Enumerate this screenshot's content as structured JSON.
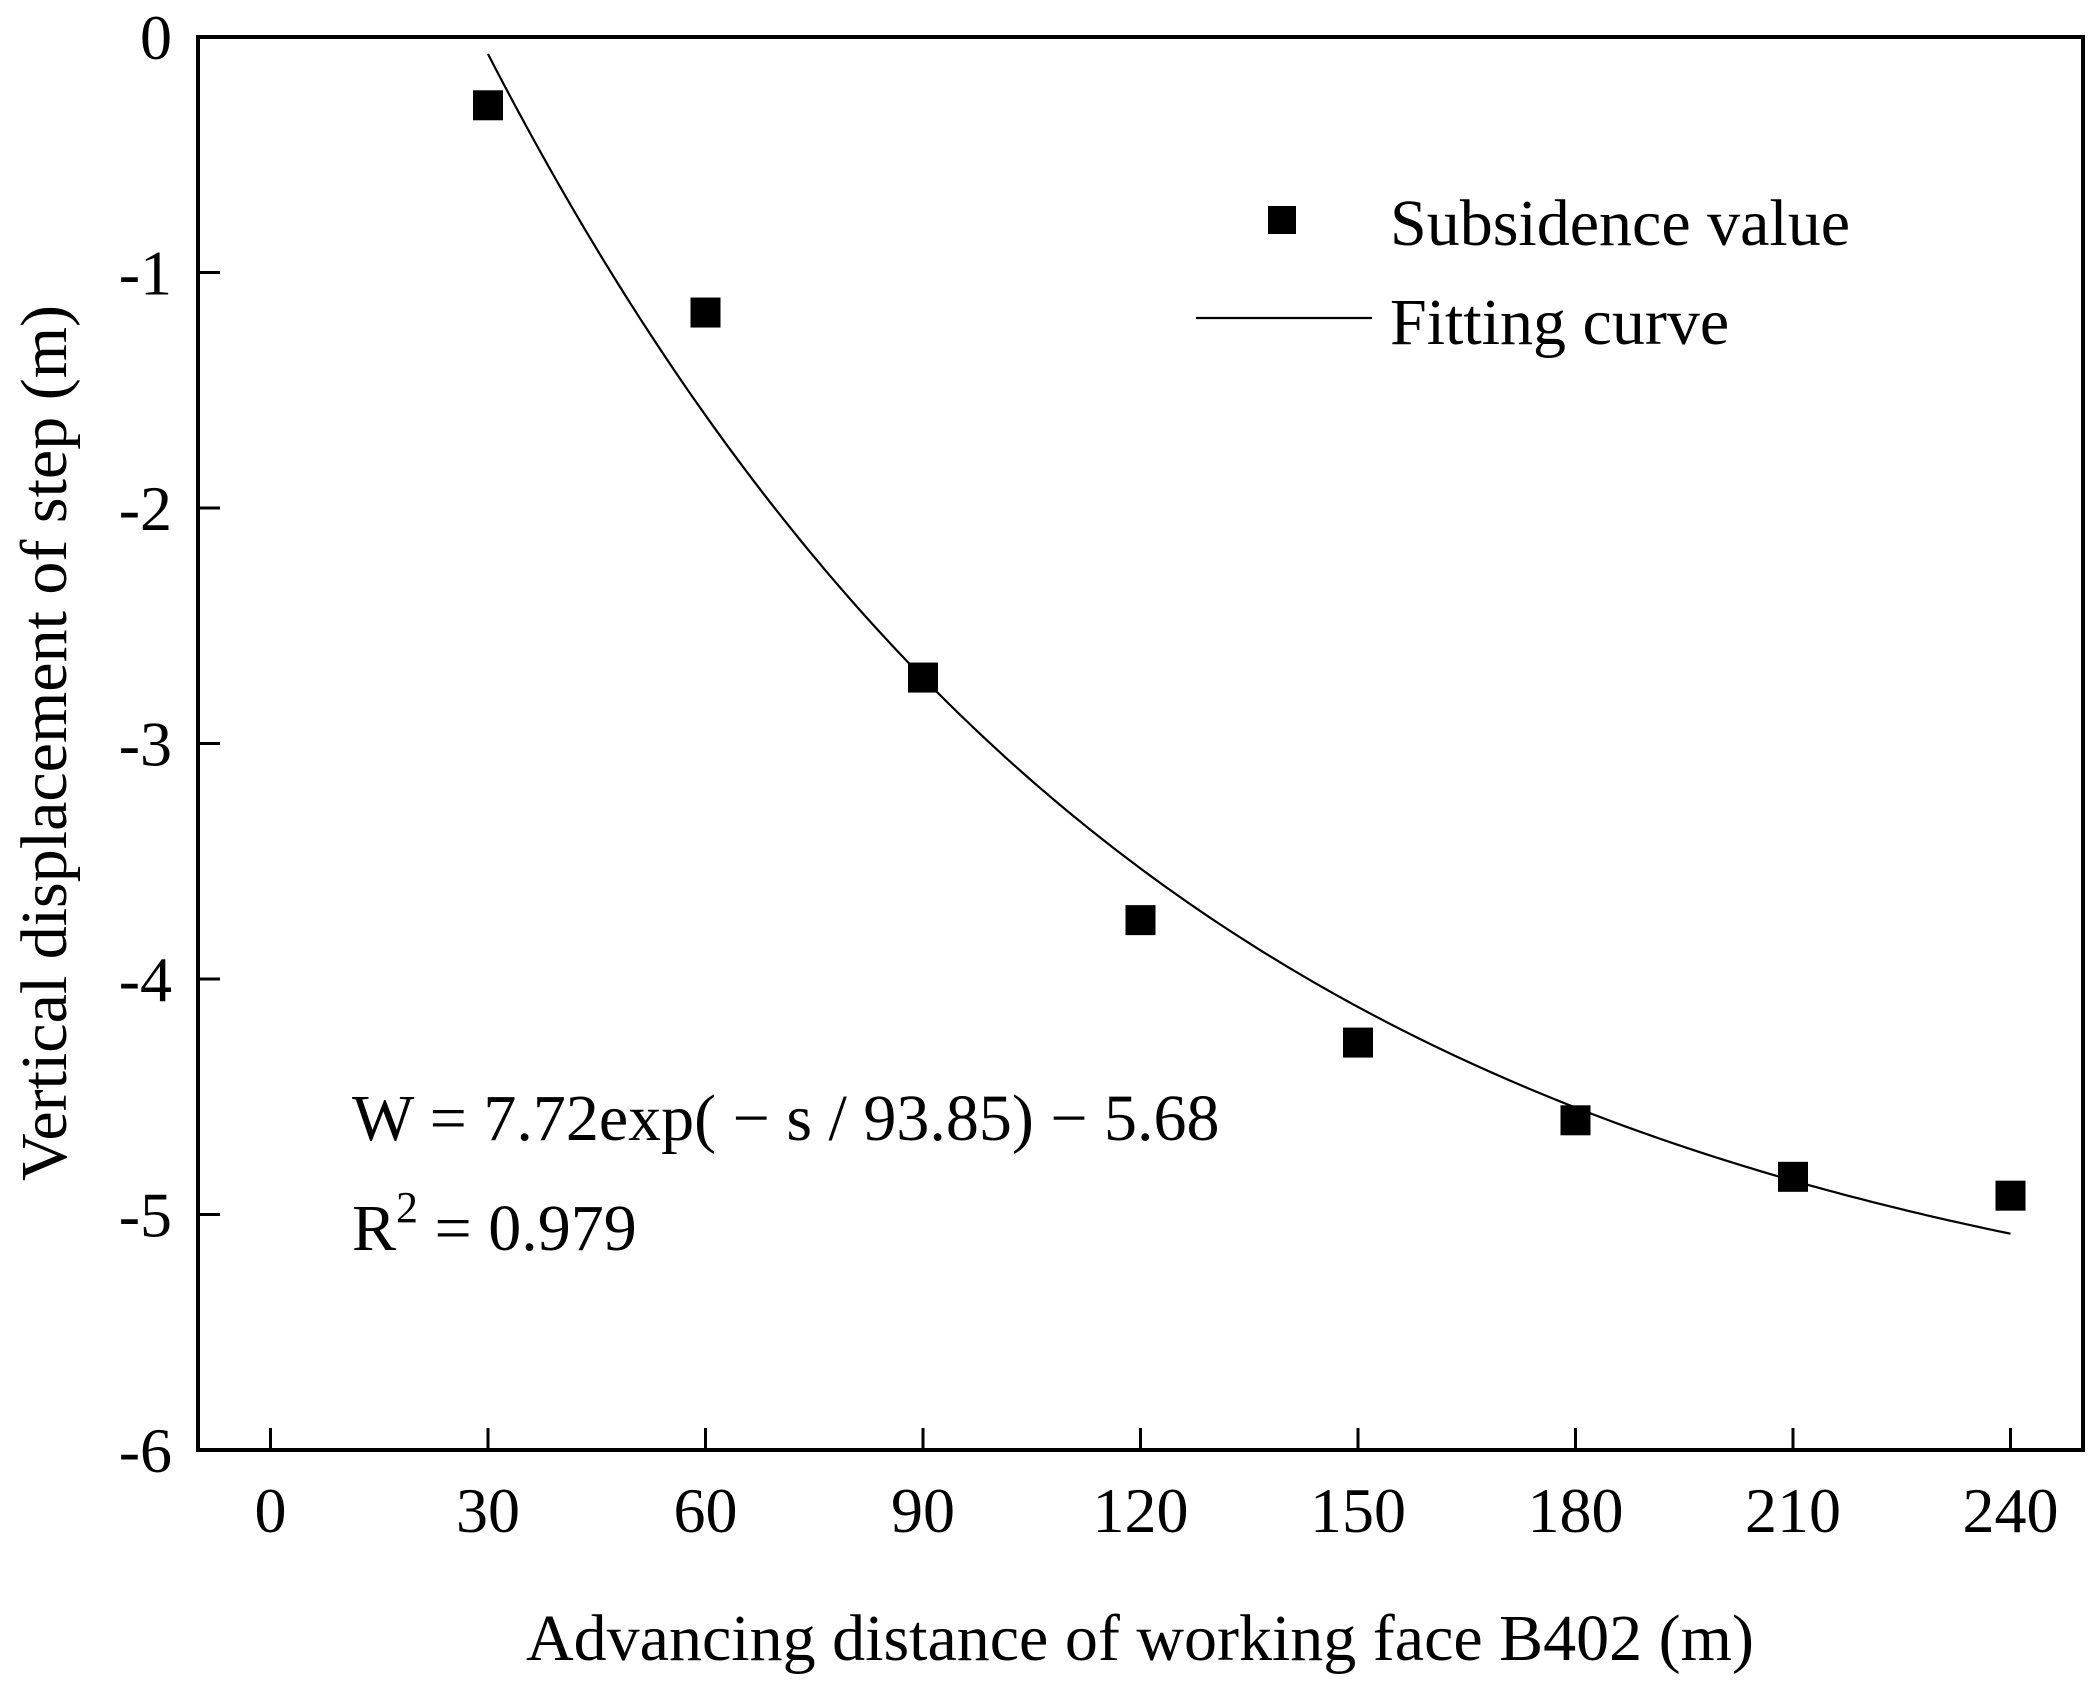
{
  "chart_data": {
    "type": "scatter",
    "title": "",
    "xlabel": "Advancing distance of working face B402 (m)",
    "ylabel": "Vertical displacement of step (m)",
    "xlim": [
      -10,
      250
    ],
    "ylim": [
      -6,
      0
    ],
    "x_ticks": [
      0,
      30,
      60,
      90,
      120,
      150,
      180,
      210,
      240
    ],
    "y_ticks": [
      0,
      -1,
      -2,
      -3,
      -4,
      -5,
      -6
    ],
    "grid": false,
    "legend_position": "top-right",
    "series": [
      {
        "name": "Subsidence value",
        "kind": "scatter",
        "marker": "square",
        "color": "#000000",
        "x": [
          30,
          60,
          90,
          120,
          150,
          180,
          210,
          240
        ],
        "y": [
          -0.29,
          -1.17,
          -2.72,
          -3.75,
          -4.27,
          -4.6,
          -4.84,
          -4.92
        ]
      },
      {
        "name": "Fitting curve",
        "kind": "line",
        "color": "#000000",
        "model": {
          "a": 7.72,
          "t": 93.85,
          "c": -5.68
        },
        "x_range": [
          30,
          240
        ]
      }
    ],
    "annotations": {
      "equation": "W = 7.72exp( − s / 93.85) − 5.68",
      "r2_label": "R",
      "r2_exponent": "2",
      "r2_value": " = 0.979"
    }
  }
}
